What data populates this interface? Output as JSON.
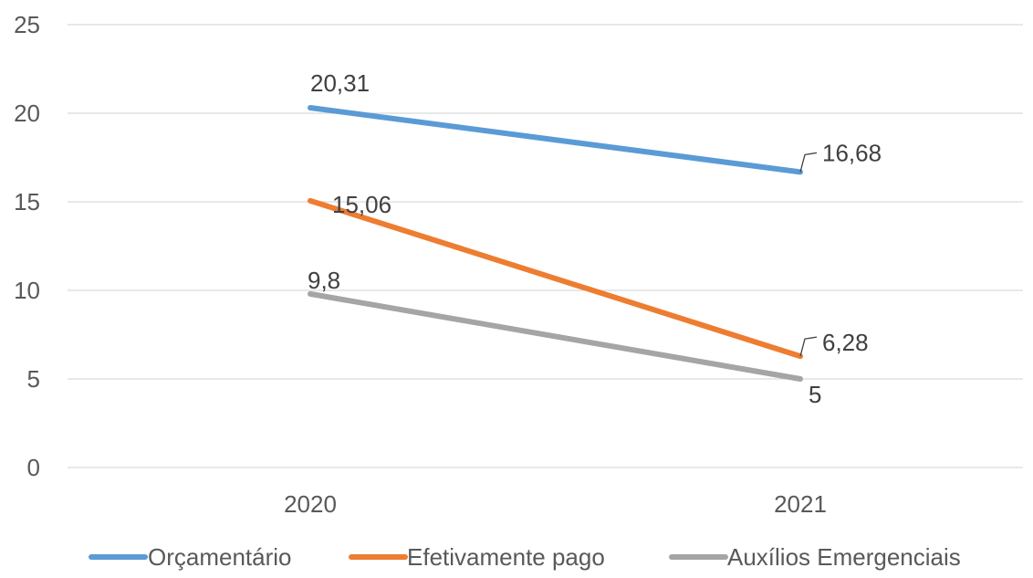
{
  "chart_data": {
    "type": "line",
    "categories": [
      "2020",
      "2021"
    ],
    "series": [
      {
        "name": "Orçamentário",
        "values": [
          20.31,
          16.68
        ],
        "labels": [
          "20,31",
          "16,68"
        ],
        "color": "#5b9bd5"
      },
      {
        "name": "Efetivamente pago",
        "values": [
          15.06,
          6.28
        ],
        "labels": [
          "15,06",
          "6,28"
        ],
        "color": "#ed7d31"
      },
      {
        "name": "Auxílios Emergenciais",
        "values": [
          9.8,
          5
        ],
        "labels": [
          "9,8",
          "5"
        ],
        "color": "#a5a5a5"
      }
    ],
    "ylim": [
      0,
      25
    ],
    "yticks": [
      0,
      5,
      10,
      15,
      20,
      25
    ],
    "ytick_labels": [
      "0",
      "5",
      "10",
      "15",
      "20",
      "25"
    ],
    "grid": true,
    "legend_position": "bottom",
    "title": "",
    "xlabel": "",
    "ylabel": ""
  }
}
